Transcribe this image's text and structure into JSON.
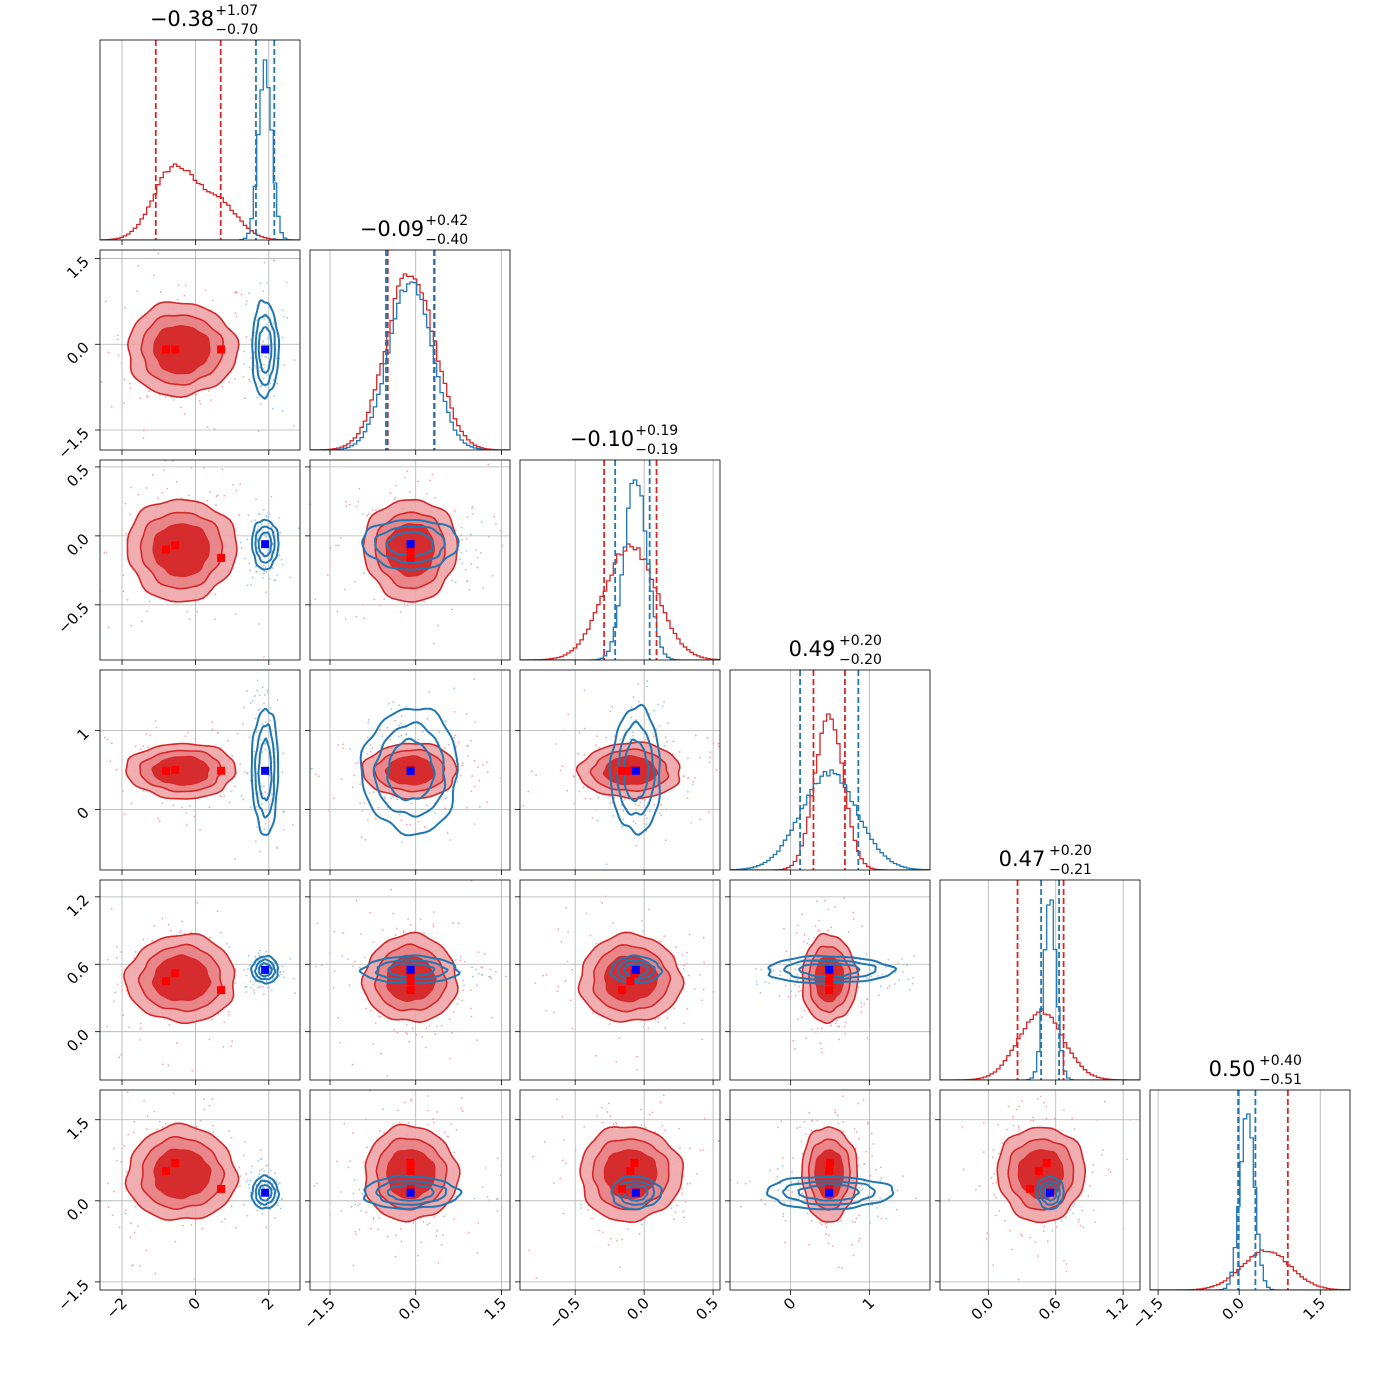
{
  "chart_data": {
    "type": "corner",
    "n_params": 6,
    "series": [
      {
        "name": "",
        "color": "#d62728",
        "marker_color": "#ff0000"
      },
      {
        "name": "",
        "color": "#1f77b4",
        "marker_color": "#0000ff"
      }
    ],
    "titles": [
      {
        "value": "−0.38",
        "plus": "+1.07",
        "minus": "−0.70"
      },
      {
        "value": "−0.09",
        "plus": "+0.42",
        "minus": "−0.40"
      },
      {
        "value": "−0.10",
        "plus": "+0.19",
        "minus": "−0.19"
      },
      {
        "value": "0.49",
        "plus": "+0.20",
        "minus": "−0.20"
      },
      {
        "value": "0.47",
        "plus": "+0.20",
        "minus": "−0.21"
      },
      {
        "value": "0.50",
        "plus": "+0.40",
        "minus": "−0.51"
      }
    ],
    "params": [
      {
        "range": [
          -2.6,
          2.85
        ],
        "ticks": [
          -2,
          0,
          2
        ],
        "tick_labels": [
          "−2",
          "0",
          "2"
        ]
      },
      {
        "range": [
          -1.85,
          1.65
        ],
        "ticks": [
          -1.5,
          0.0,
          1.5
        ],
        "tick_labels": [
          "−1.5",
          "0.0",
          "1.5"
        ]
      },
      {
        "range": [
          -0.9,
          0.55
        ],
        "ticks": [
          -0.5,
          0.0,
          0.5
        ],
        "tick_labels": [
          "−0.5",
          "0.0",
          "0.5"
        ]
      },
      {
        "range": [
          -0.77,
          1.77
        ],
        "ticks": [
          0,
          1
        ],
        "tick_labels": [
          "0",
          "1"
        ]
      },
      {
        "range": [
          -0.43,
          1.35
        ],
        "ticks": [
          0.0,
          0.6,
          1.2
        ],
        "tick_labels": [
          "0.0",
          "0.6",
          "1.2"
        ]
      },
      {
        "range": [
          -1.65,
          2.05
        ],
        "ticks": [
          -1.5,
          0.0,
          1.5
        ],
        "tick_labels": [
          "−1.5",
          "0.0",
          "1.5"
        ]
      }
    ],
    "red": {
      "modes": [
        [
          -0.8,
          -0.55,
          0.7
        ],
        [
          -0.09
        ],
        [
          -0.1
        ],
        [
          0.49
        ],
        [
          0.47
        ],
        [
          0.5
        ]
      ],
      "markers": [
        [
          -0.8,
          -0.09,
          -0.1,
          0.49,
          0.45,
          0.55
        ],
        [
          -0.55,
          -0.09,
          -0.07,
          0.5,
          0.52,
          0.7
        ],
        [
          0.7,
          -0.09,
          -0.16,
          0.49,
          0.37,
          0.22
        ]
      ],
      "std": [
        0.9,
        0.42,
        0.19,
        0.18,
        0.2,
        0.45
      ],
      "quantiles": [
        [
          -1.08,
          0.69
        ],
        [
          -0.49,
          0.33
        ],
        [
          -0.29,
          0.09
        ],
        [
          0.29,
          0.69
        ],
        [
          0.26,
          0.67
        ],
        [
          -0.01,
          0.9
        ]
      ]
    },
    "blue": {
      "center": [
        1.9,
        -0.09,
        -0.06,
        0.49,
        0.55,
        0.15
      ],
      "std": [
        0.18,
        0.42,
        0.09,
        0.4,
        0.06,
        0.15
      ],
      "quantiles": [
        [
          1.65,
          2.15
        ],
        [
          -0.52,
          0.32
        ],
        [
          -0.21,
          0.04
        ],
        [
          0.12,
          0.86
        ],
        [
          0.47,
          0.63
        ],
        [
          -0.02,
          0.3
        ]
      ]
    }
  }
}
